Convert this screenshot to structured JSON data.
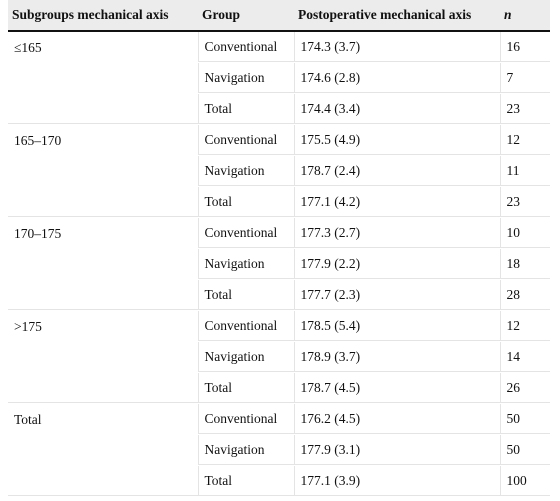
{
  "table": {
    "headers": {
      "subgroup": "Subgroups mechanical axis",
      "group": "Group",
      "post": "Postoperative mechanical axis",
      "n": "n"
    },
    "groups": [
      {
        "label": "≤165",
        "rows": [
          {
            "group": "Conventional",
            "post": "174.3 (3.7)",
            "n": "16"
          },
          {
            "group": "Navigation",
            "post": "174.6 (2.8)",
            "n": "7"
          },
          {
            "group": "Total",
            "post": "174.4 (3.4)",
            "n": "23"
          }
        ]
      },
      {
        "label": "165–170",
        "rows": [
          {
            "group": "Conventional",
            "post": "175.5 (4.9)",
            "n": "12"
          },
          {
            "group": "Navigation",
            "post": "178.7 (2.4)",
            "n": "11"
          },
          {
            "group": "Total",
            "post": "177.1 (4.2)",
            "n": "23"
          }
        ]
      },
      {
        "label": "170–175",
        "rows": [
          {
            "group": "Conventional",
            "post": "177.3 (2.7)",
            "n": "10"
          },
          {
            "group": "Navigation",
            "post": "177.9 (2.2)",
            "n": "18"
          },
          {
            "group": "Total",
            "post": "177.7 (2.3)",
            "n": "28"
          }
        ]
      },
      {
        "label": ">175",
        "rows": [
          {
            "group": "Conventional",
            "post": "178.5 (5.4)",
            "n": "12"
          },
          {
            "group": "Navigation",
            "post": "178.9 (3.7)",
            "n": "14"
          },
          {
            "group": "Total",
            "post": "178.7 (4.5)",
            "n": "26"
          }
        ]
      },
      {
        "label": "Total",
        "rows": [
          {
            "group": "Conventional",
            "post": "176.2 (4.5)",
            "n": "50"
          },
          {
            "group": "Navigation",
            "post": "177.9 (3.1)",
            "n": "50"
          },
          {
            "group": "Total",
            "post": "177.1 (3.9)",
            "n": "100"
          }
        ]
      }
    ]
  }
}
